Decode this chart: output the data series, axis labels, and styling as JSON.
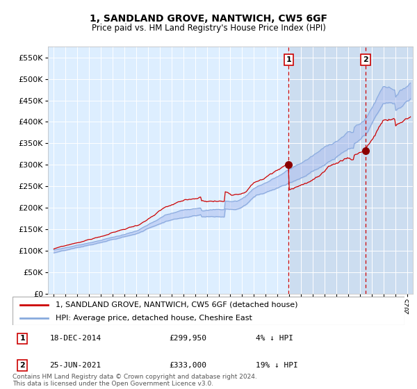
{
  "title": "1, SANDLAND GROVE, NANTWICH, CW5 6GF",
  "subtitle": "Price paid vs. HM Land Registry's House Price Index (HPI)",
  "legend_line1": "1, SANDLAND GROVE, NANTWICH, CW5 6GF (detached house)",
  "legend_line2": "HPI: Average price, detached house, Cheshire East",
  "annotation1_date": "18-DEC-2014",
  "annotation1_price": "£299,950",
  "annotation1_hpi": "4% ↓ HPI",
  "annotation1_year": 2014.96,
  "annotation1_value": 299950,
  "annotation2_date": "25-JUN-2021",
  "annotation2_price": "£333,000",
  "annotation2_hpi": "19% ↓ HPI",
  "annotation2_year": 2021.48,
  "annotation2_value": 333000,
  "footer": "Contains HM Land Registry data © Crown copyright and database right 2024.\nThis data is licensed under the Open Government Licence v3.0.",
  "ylim": [
    0,
    575000
  ],
  "xlim_start": 1994.5,
  "xlim_end": 2025.5,
  "background_chart": "#ddeeff",
  "background_shaded": "#ccddf0",
  "grid_color": "#ffffff",
  "hpi_color": "#88aadd",
  "hpi_fill_color": "#aabbee",
  "price_color": "#cc0000",
  "marker_color": "#8b0000",
  "dashed_line_color": "#cc0000",
  "fig_width": 6.0,
  "fig_height": 5.6,
  "dpi": 100
}
